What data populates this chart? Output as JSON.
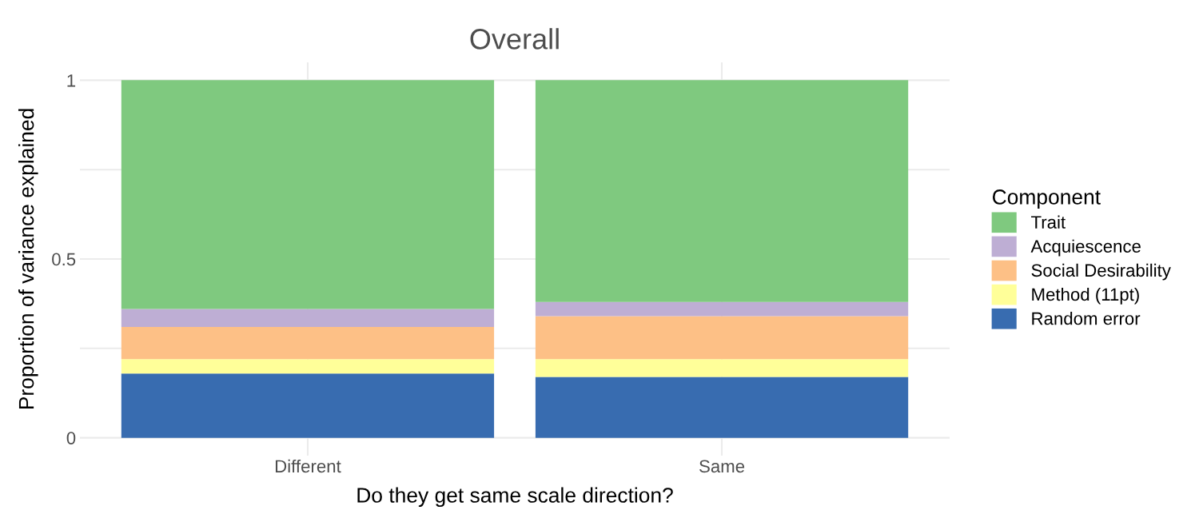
{
  "chart_data": {
    "type": "bar",
    "title": "Overall",
    "xlabel": "Do they get same scale direction?",
    "ylabel": "Proportion of variance explained",
    "legend_title": "Component",
    "categories": [
      "Different",
      "Same"
    ],
    "stacked": true,
    "series": [
      {
        "name": "Random error",
        "color": "#386cb0",
        "values": [
          0.18,
          0.17
        ]
      },
      {
        "name": "Method (11pt)",
        "color": "#ffff99",
        "values": [
          0.04,
          0.05
        ]
      },
      {
        "name": "Social Desirability",
        "color": "#fdc086",
        "values": [
          0.09,
          0.12
        ]
      },
      {
        "name": "Acquiescence",
        "color": "#beaed4",
        "values": [
          0.05,
          0.04
        ]
      },
      {
        "name": "Trait",
        "color": "#7fc97f",
        "values": [
          0.64,
          0.62
        ]
      }
    ],
    "ylim": [
      -0.05,
      1.05
    ],
    "yticks": [
      0,
      {
        "value": 0.25,
        "label": null
      },
      0.5,
      {
        "value": 0.75,
        "label": null
      },
      1
    ],
    "grid": true,
    "legend": "right"
  }
}
